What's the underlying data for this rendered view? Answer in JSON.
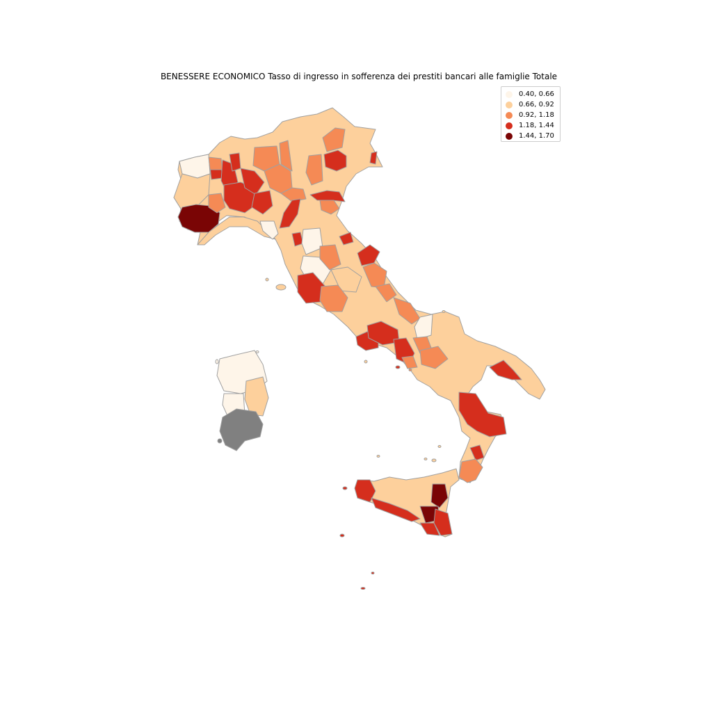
{
  "title": "BENESSERE ECONOMICO Tasso di ingresso in sofferenza dei prestiti bancari alle famiglie Totale",
  "colors": {
    "class1": "#fef5e9",
    "class2": "#fdd09c",
    "class3": "#f58a55",
    "class4": "#d52e1d",
    "class5": "#7a0505",
    "missing": "#808080",
    "border": "#a0a0a0"
  },
  "legend": [
    {
      "label": "0.40, 0.66",
      "color": "#fef5e9"
    },
    {
      "label": "0.66, 0.92",
      "color": "#fdd09c"
    },
    {
      "label": "0.92, 1.18",
      "color": "#f58a55"
    },
    {
      "label": "1.18, 1.44",
      "color": "#d52e1d"
    },
    {
      "label": "1.44, 1.70",
      "color": "#7a0505"
    }
  ]
}
